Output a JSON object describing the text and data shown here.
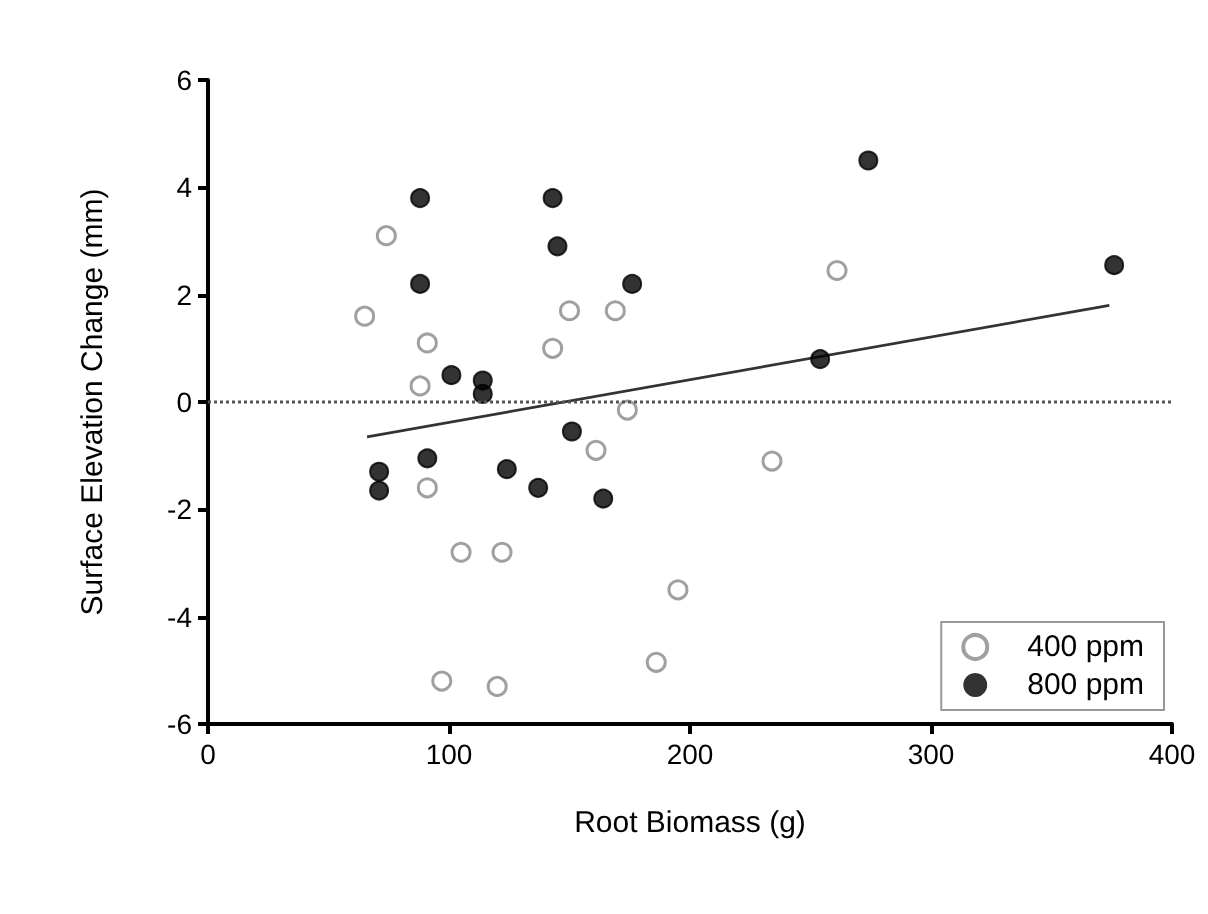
{
  "chart_data": {
    "type": "scatter",
    "xlabel": "Root Biomass (g)",
    "ylabel": "Surface Elevation Change (mm)",
    "xlim": [
      0,
      400
    ],
    "xticks": [
      0,
      100,
      200,
      300,
      400
    ],
    "ylim": [
      -6,
      6
    ],
    "yticks": [
      -6,
      -4,
      -2,
      0,
      2,
      4,
      6
    ],
    "grid": false,
    "legend": "bottom right",
    "marker": "circle",
    "series": [
      {
        "name": "400 ppm",
        "color": "#888888",
        "x": [
          65,
          74,
          91,
          88,
          91,
          105,
          122,
          97,
          120,
          143,
          150,
          169,
          174,
          161,
          261,
          234,
          195,
          186
        ],
        "values": [
          1.6,
          3.1,
          1.1,
          0.3,
          -1.6,
          -2.8,
          -2.8,
          -5.2,
          -5.3,
          1.0,
          1.7,
          1.7,
          -0.15,
          -0.9,
          2.45,
          -1.1,
          -3.5,
          -4.85
        ]
      },
      {
        "name": "800 ppm",
        "color": "#000000",
        "x": [
          88,
          88,
          101,
          114,
          114,
          71,
          71,
          91,
          124,
          137,
          164,
          151,
          143,
          145,
          176,
          274,
          376,
          254
        ],
        "values": [
          3.8,
          2.2,
          0.5,
          0.4,
          0.15,
          -1.3,
          -1.65,
          -1.05,
          -1.25,
          -1.6,
          -1.8,
          -0.55,
          3.8,
          2.9,
          2.2,
          4.5,
          2.55,
          0.8
        ]
      },
      {
        "type": "line",
        "color": "#333333",
        "x": [
          66,
          374
        ],
        "values": [
          -0.65,
          1.8
        ],
        "marker": "none"
      }
    ],
    "ref_lines": [
      {
        "axis": "y",
        "value": 0,
        "color": "#555555",
        "line_style": "dotted"
      }
    ]
  }
}
